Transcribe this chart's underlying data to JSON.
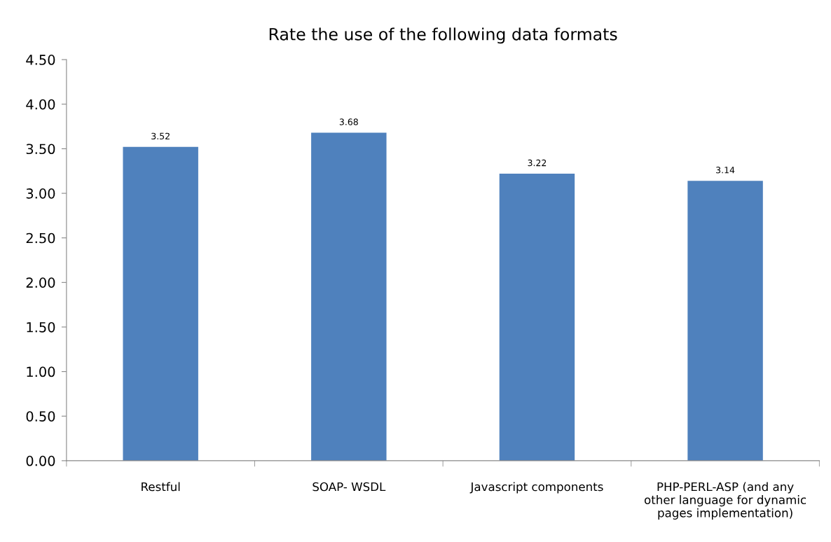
{
  "chart_data": {
    "type": "bar",
    "title": "Rate the use of the following data formats",
    "categories": [
      "Restful",
      "SOAP- WSDL",
      "Javascript components",
      "PHP-PERL-ASP (and any other language for dynamic pages implementation)"
    ],
    "values": [
      3.52,
      3.68,
      3.22,
      3.14
    ],
    "color": "#4f81bd",
    "ylim": [
      0,
      4.5
    ],
    "yticks": [
      {
        "value": 0,
        "label": "0.00"
      },
      {
        "value": 0.5,
        "label": "0.50"
      },
      {
        "value": 1,
        "label": "1.00"
      },
      {
        "value": 1.5,
        "label": "1.50"
      },
      {
        "value": 2,
        "label": "2.00"
      },
      {
        "value": 2.5,
        "label": "2.50"
      },
      {
        "value": 3,
        "label": "3.00"
      },
      {
        "value": 3.5,
        "label": "3.50"
      },
      {
        "value": 4,
        "label": "4.00"
      },
      {
        "value": 4.5,
        "label": "4.50"
      }
    ],
    "data_labels": true,
    "grid": false
  }
}
